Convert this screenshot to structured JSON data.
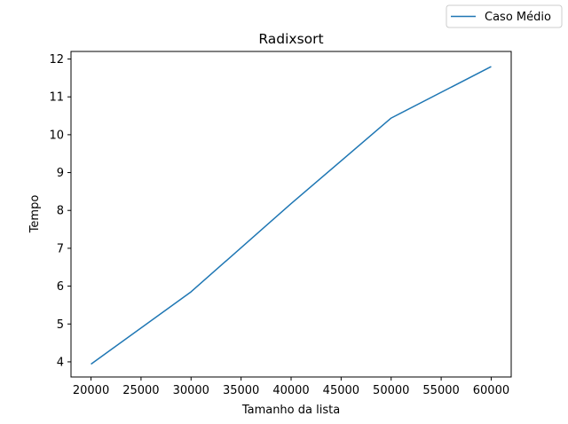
{
  "chart_data": {
    "type": "line",
    "title": "Radixsort",
    "xlabel": "Tamanho da lista",
    "ylabel": "Tempo",
    "x": [
      20000,
      30000,
      40000,
      50000,
      60000
    ],
    "series": [
      {
        "name": "Caso Médio",
        "values": [
          3.94,
          5.85,
          8.18,
          10.44,
          11.8
        ],
        "color": "#1f77b4"
      }
    ],
    "xlim": [
      18000,
      62000
    ],
    "ylim": [
      3.6,
      12.2
    ],
    "xticks": [
      20000,
      25000,
      30000,
      35000,
      40000,
      45000,
      50000,
      55000,
      60000
    ],
    "yticks": [
      4,
      5,
      6,
      7,
      8,
      9,
      10,
      11,
      12
    ],
    "grid": false,
    "legend_position": "top-right"
  }
}
